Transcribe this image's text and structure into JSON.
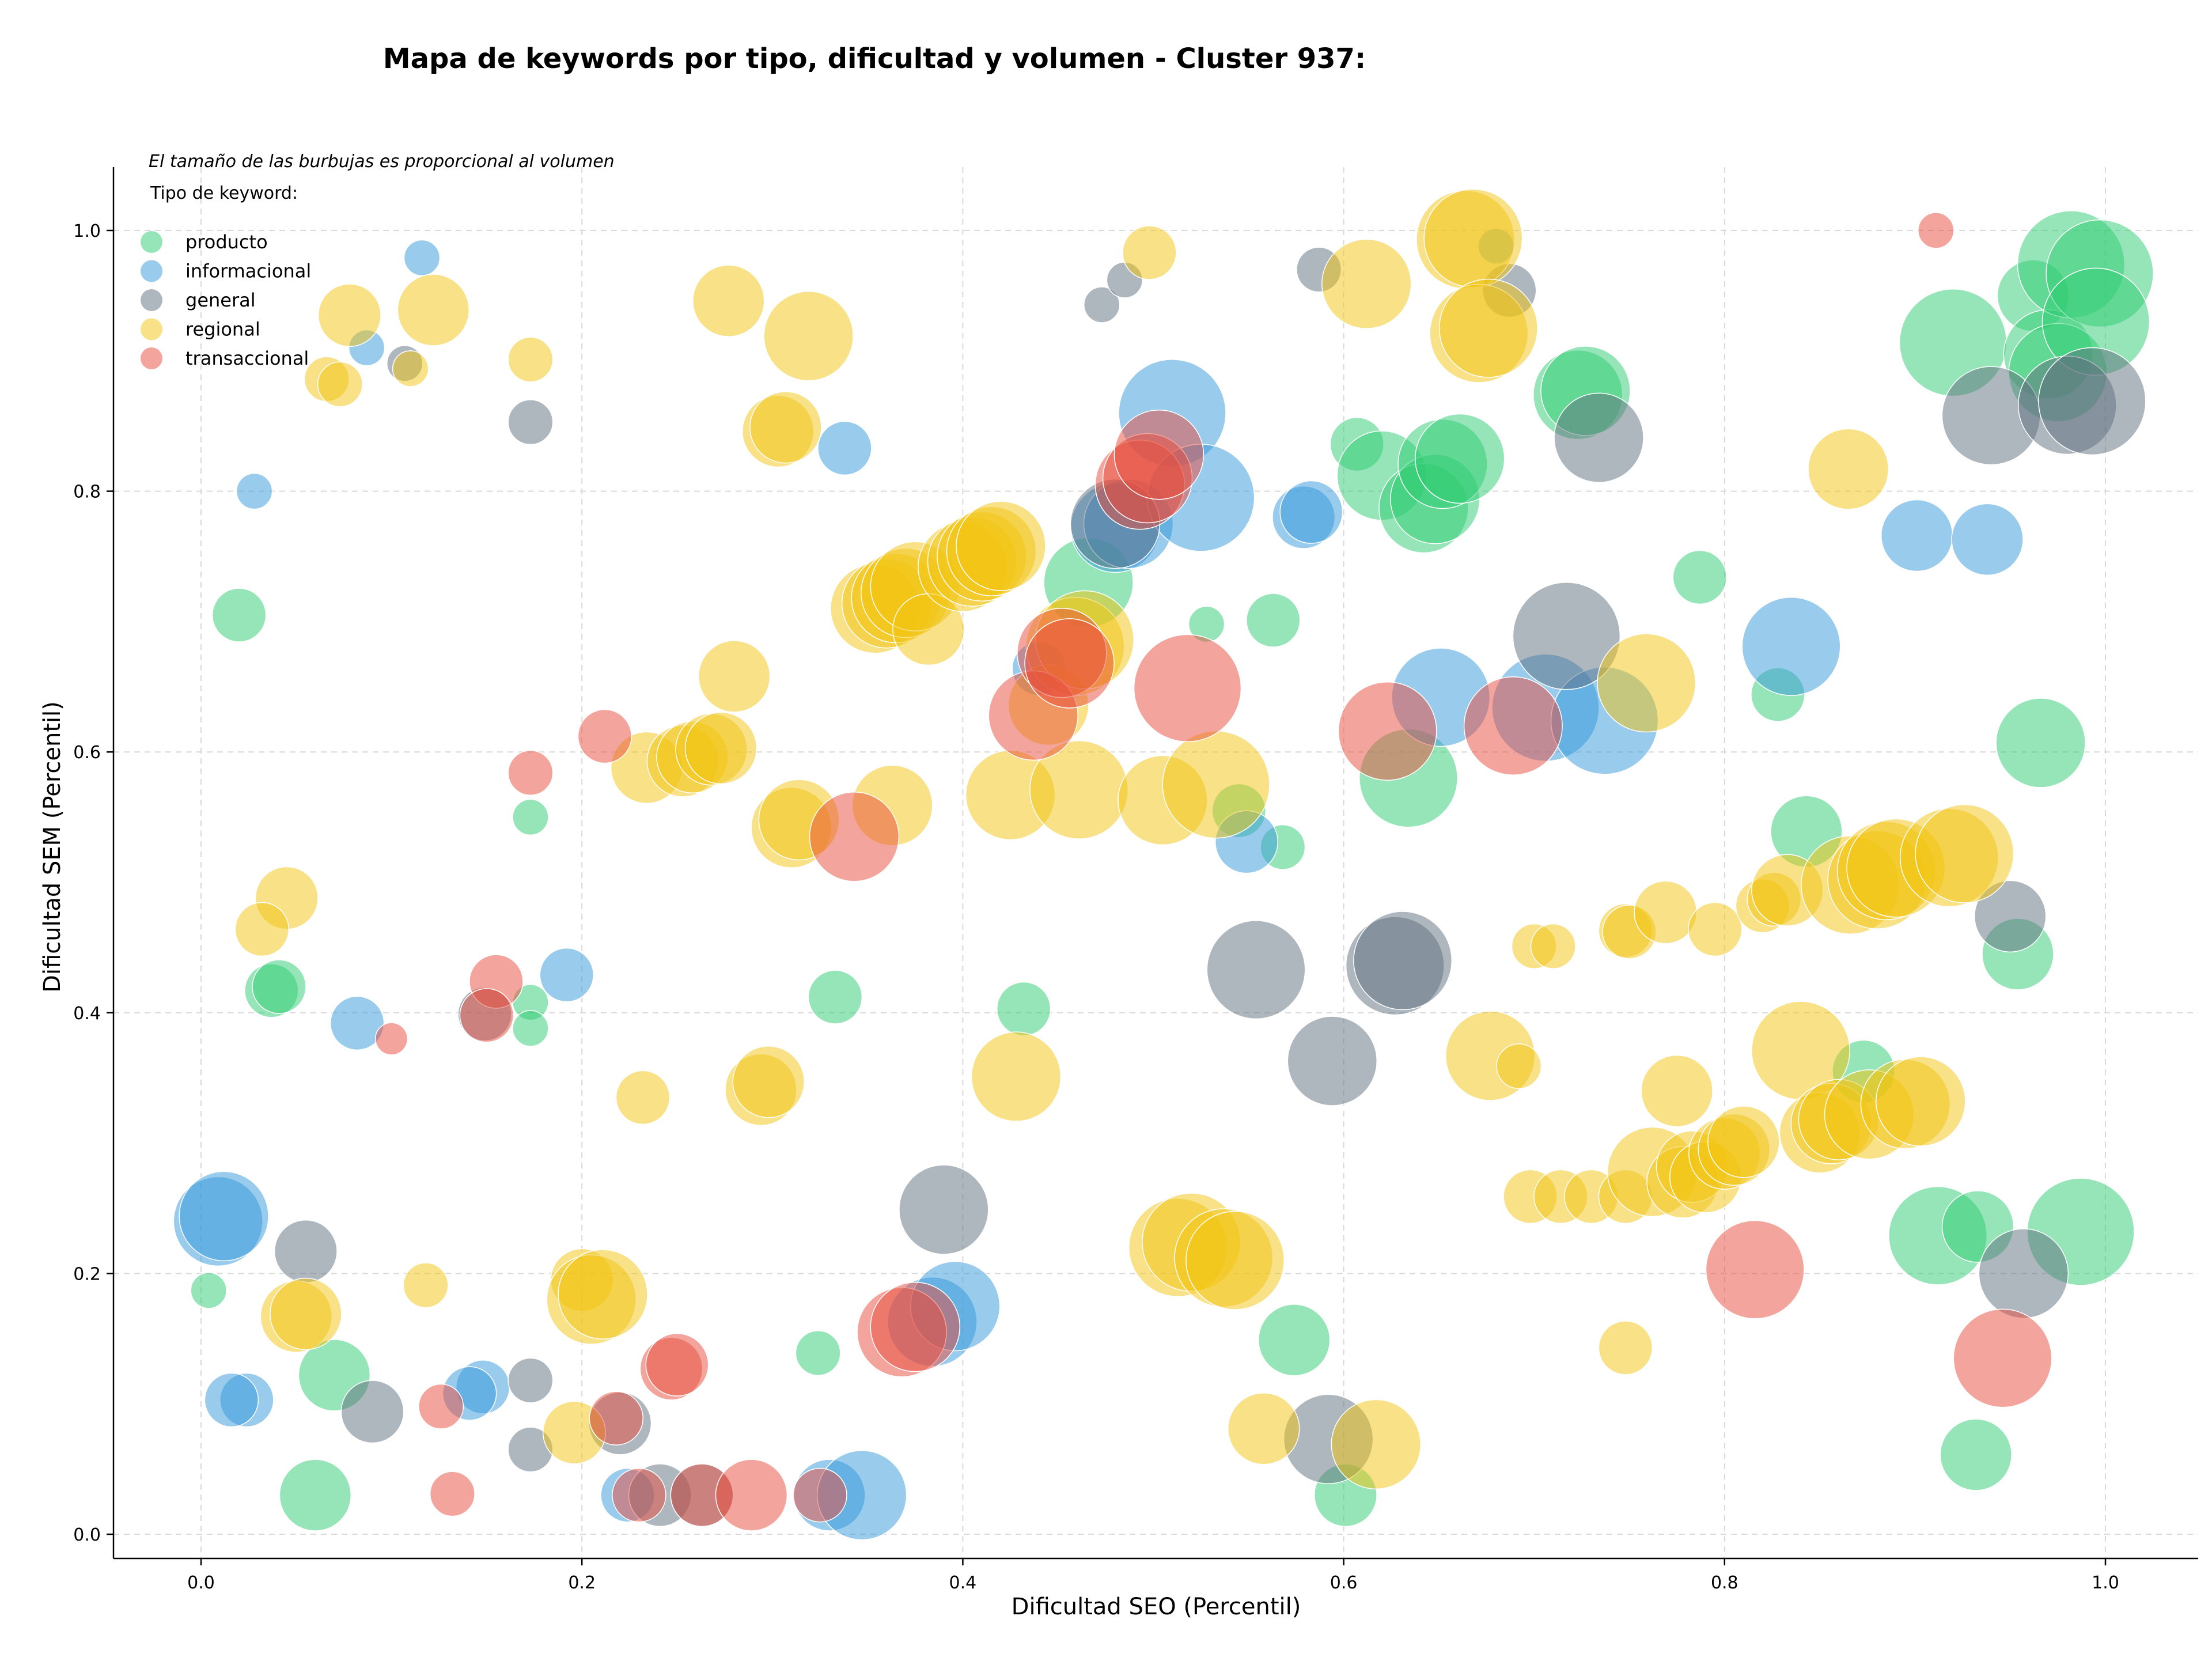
{
  "chart_data": {
    "type": "scatter",
    "title": "Mapa de keywords por tipo, dificultad y volumen - Cluster 937:",
    "xlabel": "Dificultad SEO (Percentil)",
    "ylabel": "Dificultad SEM (Percentil)",
    "xlim": [
      -0.045,
      1.05
    ],
    "ylim": [
      -0.017,
      1.05
    ],
    "xticks": [
      0.0,
      0.2,
      0.4,
      0.6,
      0.8,
      1.0
    ],
    "yticks": [
      0.0,
      0.2,
      0.4,
      0.6,
      0.8,
      1.0
    ],
    "tick_labels_x": [
      "0.0",
      "0.2",
      "0.4",
      "0.6",
      "0.8",
      "1.0"
    ],
    "tick_labels_y": [
      "0.0",
      "0.2",
      "0.4",
      "0.6",
      "0.8",
      "1.0"
    ],
    "grid": true,
    "note": "El tamaño de las burbujas es proporcional al volumen",
    "legend_title": "Tipo de keyword:",
    "legend_position": "top-left",
    "series": [
      {
        "name": "producto",
        "color": "#2ecc71",
        "points": [
          [
            0.02,
            0.705,
            3
          ],
          [
            0.004,
            0.187,
            2
          ],
          [
            0.06,
            0.03,
            4
          ],
          [
            0.07,
            0.122,
            4
          ],
          [
            0.037,
            0.417,
            3
          ],
          [
            0.041,
            0.42,
            3
          ],
          [
            0.173,
            0.55,
            2
          ],
          [
            0.173,
            0.408,
            2
          ],
          [
            0.173,
            0.388,
            2
          ],
          [
            0.333,
            0.412,
            3
          ],
          [
            0.324,
            0.139,
            2.5
          ],
          [
            0.432,
            0.403,
            3
          ],
          [
            0.466,
            0.73,
            5
          ],
          [
            0.528,
            0.698,
            2
          ],
          [
            0.563,
            0.701,
            3
          ],
          [
            0.545,
            0.555,
            3
          ],
          [
            0.568,
            0.527,
            2.5
          ],
          [
            0.574,
            0.149,
            4
          ],
          [
            0.601,
            0.03,
            3.5
          ],
          [
            0.607,
            0.836,
            3
          ],
          [
            0.62,
            0.812,
            5
          ],
          [
            0.634,
            0.58,
            5.5
          ],
          [
            0.642,
            0.787,
            5
          ],
          [
            0.648,
            0.794,
            5
          ],
          [
            0.652,
            0.821,
            5
          ],
          [
            0.661,
            0.825,
            5
          ],
          [
            0.723,
            0.874,
            5
          ],
          [
            0.727,
            0.877,
            5
          ],
          [
            0.787,
            0.734,
            3
          ],
          [
            0.828,
            0.644,
            3
          ],
          [
            0.843,
            0.539,
            4
          ],
          [
            0.873,
            0.355,
            3.5
          ],
          [
            0.912,
            0.229,
            5.5
          ],
          [
            0.933,
            0.236,
            4
          ],
          [
            0.932,
            0.061,
            4
          ],
          [
            0.92,
            0.914,
            6
          ],
          [
            0.962,
            0.95,
            4
          ],
          [
            0.966,
            0.607,
            5
          ],
          [
            0.954,
            0.445,
            4
          ],
          [
            0.97,
            0.905,
            5
          ],
          [
            0.975,
            0.891,
            5.5
          ],
          [
            0.982,
            0.974,
            6
          ],
          [
            0.997,
            0.967,
            6
          ],
          [
            0.995,
            0.93,
            6
          ],
          [
            0.987,
            0.232,
            6
          ]
        ]
      },
      {
        "name": "informacional",
        "color": "#3498db",
        "points": [
          [
            0.116,
            0.979,
            2
          ],
          [
            0.087,
            0.91,
            2
          ],
          [
            0.028,
            0.8,
            2
          ],
          [
            0.082,
            0.392,
            3
          ],
          [
            0.192,
            0.429,
            3
          ],
          [
            0.148,
            0.113,
            3
          ],
          [
            0.141,
            0.108,
            3
          ],
          [
            0.024,
            0.103,
            3
          ],
          [
            0.016,
            0.103,
            3
          ],
          [
            0.009,
            0.24,
            5
          ],
          [
            0.012,
            0.244,
            5
          ],
          [
            0.338,
            0.833,
            3
          ],
          [
            0.224,
            0.03,
            3
          ],
          [
            0.33,
            0.03,
            4
          ],
          [
            0.347,
            0.03,
            5
          ],
          [
            0.384,
            0.163,
            5
          ],
          [
            0.396,
            0.175,
            5
          ],
          [
            0.44,
            0.664,
            3
          ],
          [
            0.48,
            0.772,
            5
          ],
          [
            0.487,
            0.775,
            5
          ],
          [
            0.51,
            0.86,
            6
          ],
          [
            0.525,
            0.795,
            6
          ],
          [
            0.549,
            0.531,
            3.5
          ],
          [
            0.579,
            0.78,
            3.5
          ],
          [
            0.583,
            0.784,
            3.5
          ],
          [
            0.651,
            0.642,
            5.5
          ],
          [
            0.68,
            0.988,
            2
          ],
          [
            0.706,
            0.634,
            6
          ],
          [
            0.737,
            0.624,
            6
          ],
          [
            0.835,
            0.681,
            5.5
          ],
          [
            0.901,
            0.766,
            4
          ],
          [
            0.938,
            0.763,
            4
          ]
        ]
      },
      {
        "name": "general",
        "color": "#5d6d7e",
        "points": [
          [
            0.107,
            0.898,
            2
          ],
          [
            0.173,
            0.853,
            2.5
          ],
          [
            0.173,
            0.118,
            2.5
          ],
          [
            0.173,
            0.065,
            2.5
          ],
          [
            0.055,
            0.217,
            3.5
          ],
          [
            0.09,
            0.094,
            3.5
          ],
          [
            0.149,
            0.399,
            3
          ],
          [
            0.22,
            0.085,
            3.5
          ],
          [
            0.241,
            0.03,
            3.5
          ],
          [
            0.263,
            0.03,
            3.5
          ],
          [
            0.39,
            0.249,
            5
          ],
          [
            0.473,
            0.943,
            2
          ],
          [
            0.485,
            0.962,
            2
          ],
          [
            0.48,
            0.775,
            5
          ],
          [
            0.554,
            0.433,
            5.5
          ],
          [
            0.587,
            0.97,
            2.5
          ],
          [
            0.594,
            0.363,
            5
          ],
          [
            0.592,
            0.073,
            5
          ],
          [
            0.627,
            0.436,
            5.5
          ],
          [
            0.631,
            0.44,
            5.5
          ],
          [
            0.687,
            0.954,
            3
          ],
          [
            0.717,
            0.689,
            6
          ],
          [
            0.734,
            0.841,
            5
          ],
          [
            0.94,
            0.858,
            5.5
          ],
          [
            0.95,
            0.474,
            4
          ],
          [
            0.957,
            0.2,
            5
          ],
          [
            0.98,
            0.866,
            5.5
          ],
          [
            0.993,
            0.869,
            6
          ]
        ]
      },
      {
        "name": "regional",
        "color": "#f1c40f",
        "points": [
          [
            0.078,
            0.935,
            3.5
          ],
          [
            0.122,
            0.939,
            4
          ],
          [
            0.066,
            0.886,
            2.5
          ],
          [
            0.073,
            0.882,
            2.5
          ],
          [
            0.11,
            0.894,
            2
          ],
          [
            0.173,
            0.901,
            2.5
          ],
          [
            0.277,
            0.946,
            4
          ],
          [
            0.319,
            0.919,
            5
          ],
          [
            0.303,
            0.846,
            4
          ],
          [
            0.307,
            0.849,
            4
          ],
          [
            0.498,
            0.983,
            3
          ],
          [
            0.045,
            0.488,
            3.5
          ],
          [
            0.032,
            0.464,
            3
          ],
          [
            0.05,
            0.167,
            4
          ],
          [
            0.055,
            0.169,
            4
          ],
          [
            0.118,
            0.191,
            2.5
          ],
          [
            0.196,
            0.078,
            3.5
          ],
          [
            0.2,
            0.195,
            3.5
          ],
          [
            0.205,
            0.18,
            5
          ],
          [
            0.211,
            0.184,
            5
          ],
          [
            0.232,
            0.335,
            3
          ],
          [
            0.234,
            0.588,
            4
          ],
          [
            0.253,
            0.593,
            4
          ],
          [
            0.258,
            0.596,
            4
          ],
          [
            0.268,
            0.602,
            4
          ],
          [
            0.273,
            0.603,
            4
          ],
          [
            0.28,
            0.658,
            4
          ],
          [
            0.294,
            0.341,
            4
          ],
          [
            0.298,
            0.347,
            4
          ],
          [
            0.31,
            0.542,
            4.5
          ],
          [
            0.314,
            0.548,
            4.5
          ],
          [
            0.354,
            0.71,
            5
          ],
          [
            0.36,
            0.714,
            5
          ],
          [
            0.365,
            0.718,
            5
          ],
          [
            0.37,
            0.722,
            5
          ],
          [
            0.375,
            0.727,
            5
          ],
          [
            0.363,
            0.559,
            4.5
          ],
          [
            0.382,
            0.694,
            4
          ],
          [
            0.4,
            0.742,
            5
          ],
          [
            0.405,
            0.746,
            5
          ],
          [
            0.41,
            0.75,
            5
          ],
          [
            0.415,
            0.754,
            5
          ],
          [
            0.42,
            0.758,
            5
          ],
          [
            0.425,
            0.567,
            5
          ],
          [
            0.428,
            0.351,
            5
          ],
          [
            0.445,
            0.636,
            4.5
          ],
          [
            0.459,
            0.681,
            5.5
          ],
          [
            0.464,
            0.686,
            5.5
          ],
          [
            0.461,
            0.571,
            5.5
          ],
          [
            0.505,
            0.563,
            5
          ],
          [
            0.513,
            0.22,
            5.5
          ],
          [
            0.52,
            0.224,
            5.5
          ],
          [
            0.533,
            0.575,
            6
          ],
          [
            0.537,
            0.212,
            5.5
          ],
          [
            0.543,
            0.21,
            5.5
          ],
          [
            0.558,
            0.081,
            4
          ],
          [
            0.612,
            0.959,
            5
          ],
          [
            0.617,
            0.069,
            5
          ],
          [
            0.664,
            0.993,
            5.5
          ],
          [
            0.668,
            0.994,
            5.5
          ],
          [
            0.671,
            0.921,
            5.5
          ],
          [
            0.676,
            0.925,
            5.5
          ],
          [
            0.677,
            0.367,
            5
          ],
          [
            0.692,
            0.359,
            2.5
          ],
          [
            0.7,
            0.451,
            2.5
          ],
          [
            0.71,
            0.451,
            2.5
          ],
          [
            0.698,
            0.259,
            3
          ],
          [
            0.714,
            0.259,
            3
          ],
          [
            0.73,
            0.259,
            3
          ],
          [
            0.748,
            0.259,
            3
          ],
          [
            0.748,
            0.463,
            3
          ],
          [
            0.75,
            0.462,
            3
          ],
          [
            0.748,
            0.143,
            3
          ],
          [
            0.759,
            0.653,
            5.5
          ],
          [
            0.762,
            0.278,
            5
          ],
          [
            0.769,
            0.477,
            3.5
          ],
          [
            0.775,
            0.34,
            4
          ],
          [
            0.778,
            0.27,
            4
          ],
          [
            0.783,
            0.282,
            4
          ],
          [
            0.79,
            0.274,
            4
          ],
          [
            0.795,
            0.464,
            3
          ],
          [
            0.8,
            0.292,
            4
          ],
          [
            0.805,
            0.295,
            4
          ],
          [
            0.81,
            0.301,
            4
          ],
          [
            0.82,
            0.482,
            3
          ],
          [
            0.826,
            0.487,
            3
          ],
          [
            0.833,
            0.494,
            4
          ],
          [
            0.84,
            0.371,
            5.5
          ],
          [
            0.85,
            0.308,
            4.5
          ],
          [
            0.856,
            0.315,
            4.5
          ],
          [
            0.86,
            0.318,
            4.5
          ],
          [
            0.866,
            0.498,
            5.5
          ],
          [
            0.876,
            0.322,
            5
          ],
          [
            0.88,
            0.502,
            5.5
          ],
          [
            0.885,
            0.509,
            5.5
          ],
          [
            0.89,
            0.511,
            5.5
          ],
          [
            0.895,
            0.33,
            5
          ],
          [
            0.903,
            0.332,
            5
          ],
          [
            0.918,
            0.519,
            5.5
          ],
          [
            0.926,
            0.522,
            5.5
          ],
          [
            0.865,
            0.817,
            4.5
          ]
        ]
      },
      {
        "name": "transaccional",
        "color": "#e74c3c",
        "points": [
          [
            0.911,
            1.0,
            2
          ],
          [
            0.212,
            0.612,
            3
          ],
          [
            0.173,
            0.584,
            2.5
          ],
          [
            0.155,
            0.424,
            3
          ],
          [
            0.1,
            0.38,
            1.8
          ],
          [
            0.15,
            0.398,
            3
          ],
          [
            0.126,
            0.098,
            2.5
          ],
          [
            0.132,
            0.031,
            2.5
          ],
          [
            0.218,
            0.089,
            3
          ],
          [
            0.23,
            0.03,
            3
          ],
          [
            0.247,
            0.127,
            3.5
          ],
          [
            0.25,
            0.13,
            3.5
          ],
          [
            0.263,
            0.03,
            3.5
          ],
          [
            0.289,
            0.03,
            4
          ],
          [
            0.325,
            0.03,
            3
          ],
          [
            0.343,
            0.535,
            5
          ],
          [
            0.368,
            0.155,
            5
          ],
          [
            0.375,
            0.159,
            5
          ],
          [
            0.437,
            0.628,
            5
          ],
          [
            0.452,
            0.676,
            5
          ],
          [
            0.456,
            0.668,
            5
          ],
          [
            0.493,
            0.805,
            5
          ],
          [
            0.497,
            0.81,
            5
          ],
          [
            0.503,
            0.828,
            5
          ],
          [
            0.518,
            0.649,
            6
          ],
          [
            0.623,
            0.616,
            5.5
          ],
          [
            0.689,
            0.62,
            5.5
          ],
          [
            0.816,
            0.203,
            5.5
          ],
          [
            0.946,
            0.135,
            5.5
          ]
        ]
      }
    ]
  }
}
